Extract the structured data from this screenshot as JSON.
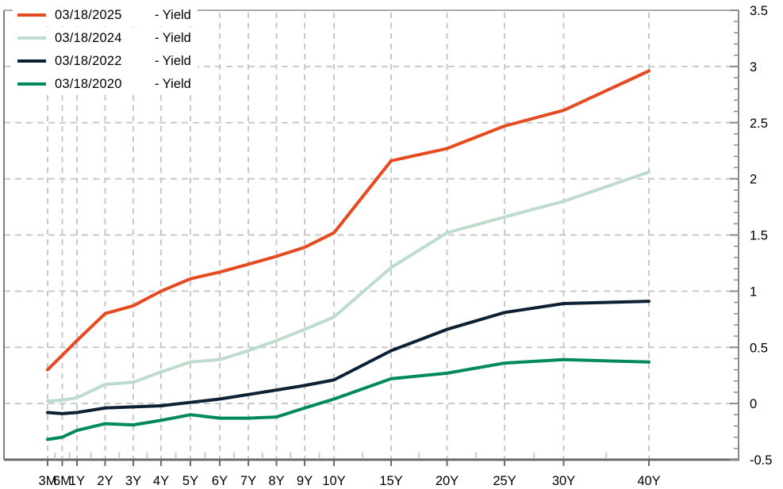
{
  "chart_data": {
    "type": "line",
    "title": "",
    "xlabel": "",
    "ylabel": "",
    "categories": [
      "3M",
      "6M",
      "1Y",
      "2Y",
      "3Y",
      "4Y",
      "5Y",
      "6Y",
      "7Y",
      "8Y",
      "9Y",
      "10Y",
      "15Y",
      "20Y",
      "25Y",
      "30Y",
      "40Y"
    ],
    "series": [
      {
        "name": "03/18/2025",
        "suffix": "- Yield",
        "color": "#e64a20",
        "values": [
          0.3,
          0.43,
          0.56,
          0.8,
          0.87,
          1.0,
          1.11,
          1.17,
          1.24,
          1.31,
          1.39,
          1.52,
          2.16,
          2.27,
          2.47,
          2.61,
          2.96
        ]
      },
      {
        "name": "03/18/2024",
        "suffix": "- Yield",
        "color": "#bedccb",
        "values": [
          0.02,
          0.03,
          0.05,
          0.17,
          0.19,
          0.28,
          0.37,
          0.39,
          0.47,
          0.56,
          0.66,
          0.77,
          1.21,
          1.52,
          1.66,
          1.8,
          2.06
        ]
      },
      {
        "name": "03/18/2022",
        "suffix": "- Yield",
        "color": "#0d2133",
        "values": [
          -0.08,
          -0.09,
          -0.08,
          -0.04,
          -0.03,
          -0.02,
          0.01,
          0.04,
          0.08,
          0.12,
          0.16,
          0.21,
          0.47,
          0.66,
          0.81,
          0.89,
          0.91
        ]
      },
      {
        "name": "03/18/2020",
        "suffix": "- Yield",
        "color": "#008a5c",
        "values": [
          -0.32,
          -0.3,
          -0.24,
          -0.18,
          -0.19,
          -0.15,
          -0.1,
          -0.13,
          -0.13,
          -0.12,
          -0.04,
          0.04,
          0.22,
          0.27,
          0.36,
          0.39,
          0.37
        ]
      }
    ],
    "y_ticks": [
      3.5,
      3,
      2.5,
      2,
      1.5,
      1,
      0.5,
      0,
      -0.5
    ],
    "y_tick_labels": [
      "3.5",
      "3",
      "2.5",
      "2",
      "1.5",
      "1",
      "0.5",
      "0",
      "-0.5"
    ],
    "ylim": [
      -0.5,
      3.5
    ],
    "y_minor_step": 0.1,
    "grid": true,
    "legend_position": "top-left",
    "y_axis_side": "right"
  },
  "colors": {
    "grid": "#c9c9c9",
    "frame_top": "#ababab",
    "frame_left": "#7d7d7d",
    "axis_bottom": "#6a6a6a",
    "axis_right": "#8a8a8a",
    "tick_label": "#000000"
  }
}
